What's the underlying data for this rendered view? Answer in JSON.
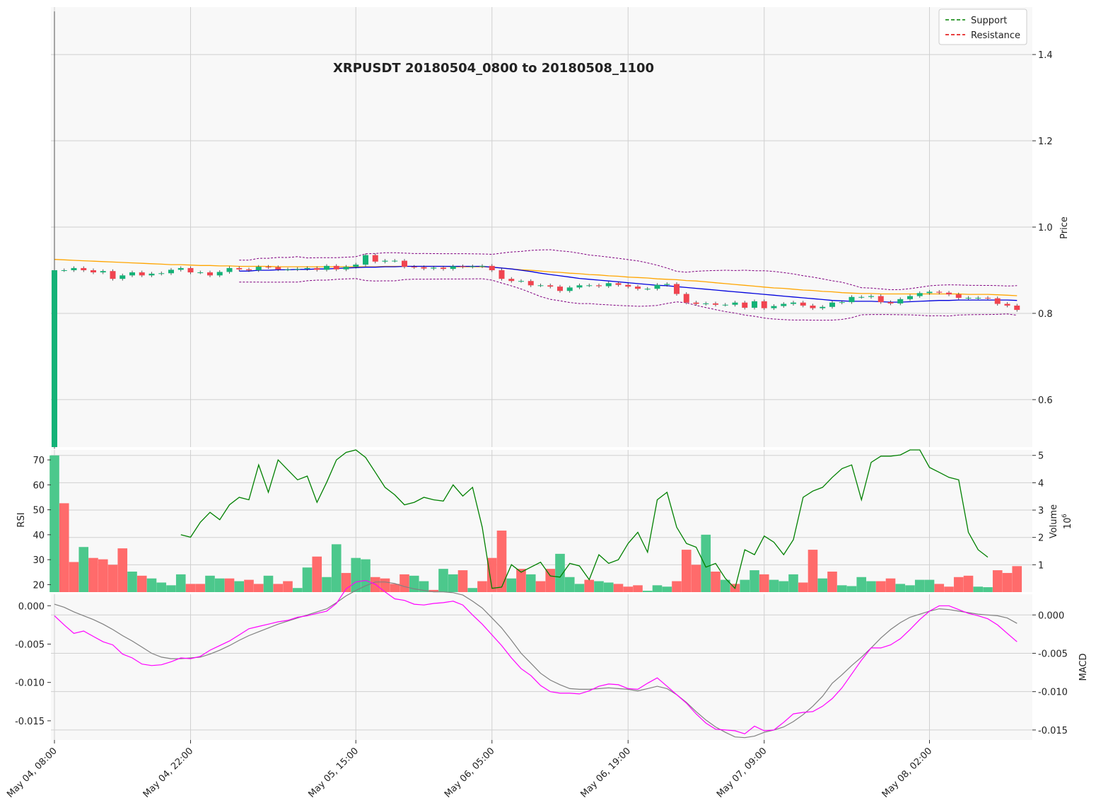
{
  "chart_data": {
    "type": "candlestick",
    "title": "XRPUSDT 20180504_0800 to 20180508_1100",
    "x_tick_labels": [
      "May 04, 08:00",
      "May 04, 22:00",
      "May 05, 15:00",
      "May 06, 05:00",
      "May 06, 19:00",
      "May 07, 09:00",
      "May 08, 02:00"
    ],
    "x_tick_index": [
      0,
      14,
      31,
      45,
      59,
      73,
      90
    ],
    "n_bars": 100,
    "colors": {
      "up": "#26a69a",
      "up_fill": "#14b277",
      "down": "#ef5350",
      "down_fill": "#f04450",
      "sma_short": "#0000dd",
      "sma_long": "#ffa500",
      "bands": "#800080",
      "rsi": "#008000",
      "macd": "#ff00ff",
      "signal": "#808080",
      "vol_up": "#4cc88c",
      "vol_down": "#ff6b6b",
      "support": "#008000",
      "resistance": "#e00000"
    },
    "price_panel": {
      "ylabel": "Price",
      "ylim": [
        0.49,
        1.51
      ],
      "ticks": [
        0.6,
        0.8,
        1.0,
        1.2,
        1.4
      ],
      "tick_labels": [
        "0.6",
        "0.8",
        "1.0",
        "1.2",
        "1.4"
      ],
      "legend": [
        {
          "label": "Support",
          "style": "dashed",
          "color": "#008000"
        },
        {
          "label": "Resistance",
          "style": "dashed",
          "color": "#e00000"
        }
      ],
      "close": [
        0.9,
        0.9,
        0.905,
        0.9,
        0.895,
        0.898,
        0.88,
        0.888,
        0.895,
        0.888,
        0.892,
        0.893,
        0.901,
        0.905,
        0.895,
        0.895,
        0.888,
        0.896,
        0.905,
        0.902,
        0.9,
        0.908,
        0.907,
        0.902,
        0.902,
        0.903,
        0.905,
        0.901,
        0.91,
        0.902,
        0.908,
        0.913,
        0.935,
        0.92,
        0.922,
        0.922,
        0.908,
        0.907,
        0.904,
        0.906,
        0.903,
        0.909,
        0.908,
        0.909,
        0.91,
        0.9,
        0.88,
        0.875,
        0.875,
        0.865,
        0.865,
        0.862,
        0.852,
        0.86,
        0.865,
        0.865,
        0.863,
        0.87,
        0.866,
        0.862,
        0.857,
        0.857,
        0.866,
        0.868,
        0.845,
        0.825,
        0.822,
        0.823,
        0.82,
        0.82,
        0.825,
        0.813,
        0.828,
        0.812,
        0.817,
        0.822,
        0.825,
        0.818,
        0.812,
        0.815,
        0.825,
        0.826,
        0.838,
        0.838,
        0.84,
        0.826,
        0.823,
        0.833,
        0.84,
        0.847,
        0.85,
        0.848,
        0.844,
        0.836,
        0.836,
        0.836,
        0.835,
        0.822,
        0.818,
        0.808
      ],
      "sma_short": [
        null,
        null,
        null,
        null,
        null,
        null,
        null,
        null,
        null,
        null,
        null,
        null,
        null,
        null,
        null,
        null,
        null,
        null,
        null,
        0.898,
        0.898,
        0.9,
        0.9,
        0.901,
        0.901,
        0.902,
        0.902,
        0.903,
        0.903,
        0.904,
        0.905,
        0.906,
        0.907,
        0.907,
        0.908,
        0.908,
        0.909,
        0.909,
        0.909,
        0.909,
        0.909,
        0.909,
        0.909,
        0.909,
        0.909,
        0.907,
        0.905,
        0.903,
        0.9,
        0.897,
        0.893,
        0.89,
        0.887,
        0.884,
        0.881,
        0.879,
        0.877,
        0.875,
        0.873,
        0.871,
        0.869,
        0.867,
        0.865,
        0.864,
        0.862,
        0.86,
        0.858,
        0.856,
        0.854,
        0.852,
        0.85,
        0.848,
        0.846,
        0.844,
        0.842,
        0.84,
        0.838,
        0.836,
        0.834,
        0.832,
        0.83,
        0.829,
        0.828,
        0.828,
        0.828,
        0.827,
        0.826,
        0.826,
        0.827,
        0.828,
        0.829,
        0.83,
        0.83,
        0.831,
        0.831,
        0.831,
        0.831,
        0.831,
        0.831,
        0.83
      ],
      "sma_long": [
        0.925,
        0.924,
        0.923,
        0.922,
        0.921,
        0.92,
        0.919,
        0.918,
        0.917,
        0.916,
        0.915,
        0.914,
        0.913,
        0.913,
        0.912,
        0.911,
        0.911,
        0.91,
        0.91,
        0.909,
        0.909,
        0.909,
        0.909,
        0.908,
        0.908,
        0.908,
        0.908,
        0.908,
        0.908,
        0.908,
        0.908,
        0.908,
        0.908,
        0.908,
        0.909,
        0.909,
        0.909,
        0.909,
        0.909,
        0.909,
        0.909,
        0.908,
        0.908,
        0.908,
        0.908,
        0.907,
        0.905,
        0.903,
        0.901,
        0.9,
        0.898,
        0.896,
        0.895,
        0.893,
        0.892,
        0.89,
        0.889,
        0.887,
        0.886,
        0.884,
        0.883,
        0.882,
        0.88,
        0.879,
        0.878,
        0.876,
        0.875,
        0.873,
        0.871,
        0.869,
        0.867,
        0.865,
        0.863,
        0.861,
        0.859,
        0.858,
        0.856,
        0.854,
        0.853,
        0.851,
        0.85,
        0.848,
        0.847,
        0.846,
        0.846,
        0.845,
        0.845,
        0.845,
        0.845,
        0.845,
        0.845,
        0.845,
        0.845,
        0.845,
        0.844,
        0.844,
        0.844,
        0.843,
        0.842,
        0.841
      ]
    },
    "rsi_panel": {
      "ylabel": "RSI",
      "ylim": [
        17,
        74
      ],
      "ticks": [
        20,
        30,
        40,
        50,
        60,
        70
      ],
      "tick_labels": [
        "20",
        "30",
        "40",
        "50",
        "60",
        "70"
      ],
      "rsi": [
        null,
        null,
        null,
        null,
        null,
        null,
        null,
        null,
        null,
        null,
        null,
        null,
        null,
        40.0,
        39.0,
        45.0,
        49.0,
        46.0,
        52.0,
        55.0,
        54.0,
        68.0,
        57.0,
        70.0,
        66.0,
        62.0,
        63.5,
        53.0,
        61.0,
        70.0,
        73.0,
        80.0,
        71.0,
        65.0,
        59.0,
        56.0,
        52.0,
        53.0,
        55.0,
        54.0,
        53.5,
        60.0,
        55.5,
        59.0,
        43.0,
        18.5,
        19.0,
        28.0,
        25.0,
        27.0,
        29.0,
        23.5,
        23.0,
        28.5,
        27.5,
        22.0,
        32.0,
        28.5,
        30.0,
        36.5,
        41.0,
        33.0,
        54.0,
        57.0,
        43.0,
        36.5,
        35.0,
        27.0,
        28.5,
        22.5,
        18.5,
        34.0,
        32.0,
        39.5,
        37.0,
        32.0,
        38.0,
        55.0,
        57.5,
        59.0,
        63.0,
        66.5,
        68.0,
        54.0,
        69.0,
        71.5,
        71.5,
        72.0,
        79.0,
        77.0,
        67.0,
        65.0,
        63.0,
        62.0,
        41.0,
        34.0,
        31.0
      ]
    },
    "volume_panel": {
      "ylabel": "Volume",
      "exponent_label": "10",
      "exponent": "6",
      "ylim": [
        0,
        5.2
      ],
      "ticks": [
        1,
        2,
        3,
        4,
        5
      ],
      "tick_labels": [
        "1",
        "2",
        "3",
        "4",
        "5"
      ],
      "volume_millions": [
        5.0,
        3.25,
        1.1,
        1.65,
        1.25,
        1.2,
        1.0,
        1.6,
        0.75,
        0.6,
        0.5,
        0.35,
        0.25,
        0.65,
        0.3,
        0.3,
        0.6,
        0.5,
        0.5,
        0.4,
        0.45,
        0.3,
        0.6,
        0.3,
        0.4,
        0.15,
        0.9,
        1.3,
        0.55,
        1.75,
        0.7,
        1.25,
        1.2,
        0.55,
        0.5,
        0.3,
        0.65,
        0.6,
        0.4,
        0.08,
        0.85,
        0.65,
        0.8,
        0.15,
        0.4,
        1.25,
        2.25,
        0.5,
        0.85,
        0.65,
        0.4,
        0.85,
        1.4,
        0.55,
        0.3,
        0.45,
        0.4,
        0.35,
        0.3,
        0.2,
        0.25,
        0.05,
        0.25,
        0.2,
        0.4,
        1.55,
        1.0,
        2.1,
        0.75,
        0.45,
        0.3,
        0.45,
        0.8,
        0.65,
        0.45,
        0.4,
        0.65,
        0.35,
        1.55,
        0.5,
        0.75,
        0.25,
        0.22,
        0.55,
        0.4,
        0.4,
        0.5,
        0.3,
        0.25,
        0.45,
        0.45,
        0.3,
        0.2,
        0.55,
        0.6,
        0.2,
        0.18,
        0.8,
        0.7,
        0.95
      ],
      "direction": [
        "up",
        "down",
        "down",
        "up",
        "down",
        "down",
        "down",
        "down",
        "up",
        "down",
        "up",
        "up",
        "up",
        "up",
        "down",
        "down",
        "up",
        "up",
        "down",
        "up",
        "down",
        "down",
        "up",
        "down",
        "down",
        "up",
        "up",
        "down",
        "up",
        "up",
        "down",
        "up",
        "up",
        "down",
        "down",
        "down",
        "down",
        "up",
        "up",
        "down",
        "up",
        "up",
        "down",
        "up",
        "down",
        "down",
        "down",
        "up",
        "down",
        "up",
        "down",
        "down",
        "up",
        "up",
        "up",
        "down",
        "up",
        "up",
        "down",
        "down",
        "down",
        "up",
        "up",
        "up",
        "down",
        "down",
        "down",
        "up",
        "down",
        "up",
        "down",
        "up",
        "up",
        "down",
        "up",
        "up",
        "up",
        "down",
        "down",
        "up",
        "down",
        "up",
        "up",
        "up",
        "up",
        "down",
        "down",
        "up",
        "up",
        "up",
        "up",
        "down",
        "down",
        "down",
        "down",
        "up",
        "up",
        "down",
        "down",
        "down"
      ]
    },
    "macd_panel": {
      "ylabel": "MACD",
      "ylim": [
        -0.0175,
        0.0015
      ],
      "ticks": [
        -0.015,
        -0.01,
        -0.005,
        0.0
      ],
      "tick_labels": [
        "-0.015",
        "-0.010",
        "-0.005",
        "0.000"
      ],
      "macd": [
        -0.0013,
        -0.0025,
        -0.0036,
        -0.0033,
        -0.004,
        -0.0047,
        -0.0051,
        -0.0063,
        -0.0068,
        -0.0076,
        -0.0078,
        -0.0077,
        -0.0073,
        -0.0068,
        -0.0069,
        -0.0066,
        -0.0058,
        -0.0052,
        -0.0046,
        -0.0038,
        -0.003,
        -0.0027,
        -0.0024,
        -0.0021,
        -0.0019,
        -0.0015,
        -0.0013,
        -0.001,
        -0.0007,
        0.0003,
        0.0022,
        0.0031,
        0.0033,
        0.0028,
        0.0018,
        0.0009,
        0.0007,
        0.0002,
        0.0001,
        0.0003,
        0.0004,
        0.0006,
        0.0001,
        -0.0012,
        -0.0024,
        -0.0038,
        -0.0052,
        -0.0068,
        -0.0082,
        -0.0091,
        -0.0104,
        -0.0112,
        -0.0114,
        -0.0114,
        -0.0115,
        -0.0111,
        -0.0105,
        -0.0102,
        -0.0103,
        -0.0108,
        -0.0109,
        -0.0101,
        -0.0094,
        -0.0105,
        -0.0116,
        -0.0127,
        -0.0141,
        -0.0153,
        -0.0161,
        -0.0162,
        -0.0163,
        -0.0167,
        -0.0157,
        -0.0163,
        -0.0162,
        -0.0152,
        -0.0141,
        -0.0139,
        -0.0138,
        -0.0131,
        -0.0121,
        -0.0107,
        -0.0089,
        -0.0071,
        -0.0055,
        -0.0055,
        -0.0051,
        -0.0043,
        -0.0031,
        -0.0018,
        -0.0007,
        0.0,
        0.0,
        -0.0005,
        -0.001,
        -0.0013,
        -0.0017,
        -0.0025,
        -0.0036,
        -0.0047
      ],
      "signal": [
        0.0002,
        -0.0002,
        -0.0008,
        -0.0013,
        -0.0018,
        -0.0024,
        -0.0031,
        -0.0039,
        -0.0046,
        -0.0054,
        -0.0062,
        -0.0067,
        -0.0069,
        -0.0069,
        -0.0068,
        -0.0067,
        -0.0063,
        -0.0058,
        -0.0052,
        -0.0045,
        -0.0039,
        -0.0034,
        -0.0029,
        -0.0024,
        -0.002,
        -0.0016,
        -0.0012,
        -0.0008,
        -0.0004,
        0.0004,
        0.0013,
        0.002,
        0.0026,
        0.0031,
        0.0031,
        0.0029,
        0.0025,
        0.0022,
        0.002,
        0.0018,
        0.0018,
        0.0017,
        0.0014,
        0.0006,
        -0.0003,
        -0.0016,
        -0.0029,
        -0.0045,
        -0.0062,
        -0.0075,
        -0.0088,
        -0.0097,
        -0.0103,
        -0.0108,
        -0.0109,
        -0.0109,
        -0.0108,
        -0.0107,
        -0.0108,
        -0.0109,
        -0.0111,
        -0.0108,
        -0.0105,
        -0.0108,
        -0.0116,
        -0.0126,
        -0.0138,
        -0.0149,
        -0.0158,
        -0.0165,
        -0.0171,
        -0.0172,
        -0.017,
        -0.0165,
        -0.0162,
        -0.0158,
        -0.0151,
        -0.0142,
        -0.0131,
        -0.0118,
        -0.0101,
        -0.009,
        -0.0078,
        -0.0067,
        -0.0055,
        -0.0042,
        -0.0031,
        -0.0022,
        -0.0015,
        -0.0011,
        -0.0007,
        -0.0004,
        -0.0005,
        -0.0007,
        -0.0009,
        -0.0011,
        -0.0012,
        -0.0013,
        -0.0016,
        -0.0023
      ]
    }
  }
}
